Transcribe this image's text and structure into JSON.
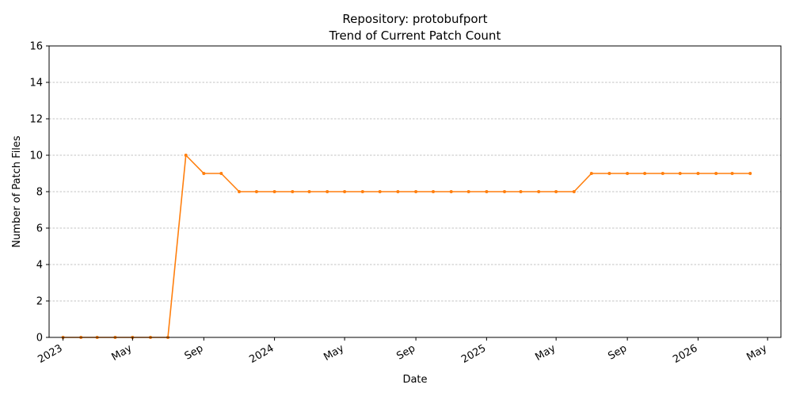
{
  "chart_data": {
    "type": "line",
    "title": "Repository: protobufport",
    "subtitle": "Trend of Current Patch Count",
    "xlabel": "Date",
    "ylabel": "Number of Patch Files",
    "ylim": [
      0,
      16
    ],
    "xlim": [
      "2022-12-08",
      "2026-05-24"
    ],
    "grid": "horizontal dashed",
    "y_ticks": [
      0,
      2,
      4,
      6,
      8,
      10,
      12,
      14,
      16
    ],
    "x_ticks": [
      {
        "date": "2023-01-01",
        "label": "2023"
      },
      {
        "date": "2023-05-01",
        "label": "May"
      },
      {
        "date": "2023-09-01",
        "label": "Sep"
      },
      {
        "date": "2024-01-01",
        "label": "2024"
      },
      {
        "date": "2024-05-01",
        "label": "May"
      },
      {
        "date": "2024-09-01",
        "label": "Sep"
      },
      {
        "date": "2025-01-01",
        "label": "2025"
      },
      {
        "date": "2025-05-01",
        "label": "May"
      },
      {
        "date": "2025-09-01",
        "label": "Sep"
      },
      {
        "date": "2026-01-01",
        "label": "2026"
      },
      {
        "date": "2026-05-01",
        "label": "May"
      }
    ],
    "series": [
      {
        "color": "#ff7f0e",
        "x": [
          "2023-01-01",
          "2023-02-01",
          "2023-03-01",
          "2023-04-01",
          "2023-05-01",
          "2023-06-01",
          "2023-07-01",
          "2023-08-01",
          "2023-09-01",
          "2023-10-01",
          "2023-11-01",
          "2023-12-01",
          "2024-01-01",
          "2024-02-01",
          "2024-03-01",
          "2024-04-01",
          "2024-05-01",
          "2024-06-01",
          "2024-07-01",
          "2024-08-01",
          "2024-09-01",
          "2024-10-01",
          "2024-11-01",
          "2024-12-01",
          "2025-01-01",
          "2025-02-01",
          "2025-03-01",
          "2025-04-01",
          "2025-05-01",
          "2025-06-01",
          "2025-07-01",
          "2025-08-01",
          "2025-09-01",
          "2025-10-01",
          "2025-11-01",
          "2025-12-01",
          "2026-01-01",
          "2026-02-01",
          "2026-03-01",
          "2026-04-01"
        ],
        "values": [
          0,
          0,
          0,
          0,
          0,
          0,
          0,
          10,
          9,
          9,
          8,
          8,
          8,
          8,
          8,
          8,
          8,
          8,
          8,
          8,
          8,
          8,
          8,
          8,
          8,
          8,
          8,
          8,
          8,
          8,
          9,
          9,
          9,
          9,
          9,
          9,
          9,
          9,
          9,
          9
        ]
      }
    ]
  }
}
